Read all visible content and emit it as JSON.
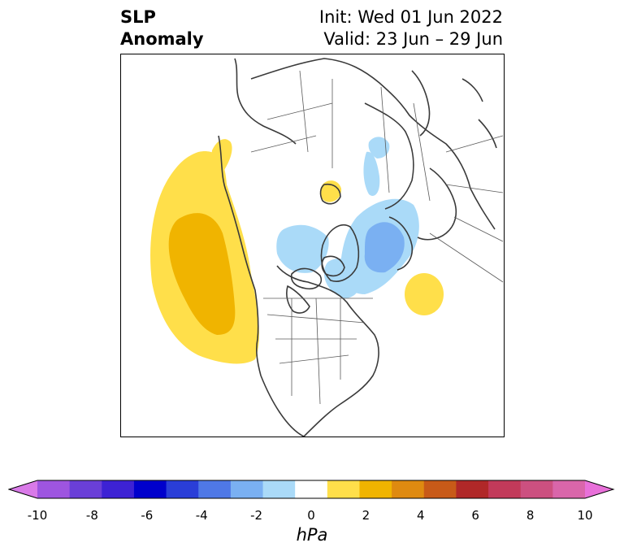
{
  "title": {
    "left_line1": "SLP",
    "left_line2": "Anomaly",
    "right_line1": "Init: Wed 01 Jun 2022",
    "right_line2": "Valid: 23 Jun – 29 Jun"
  },
  "colorbar": {
    "units": "hPa",
    "tick_labels": [
      "-10",
      "-8",
      "-6",
      "-4",
      "-2",
      "0",
      "2",
      "4",
      "6",
      "8",
      "10"
    ],
    "colors": [
      "#d97ae8",
      "#9e55e0",
      "#6a3fd8",
      "#3d22d4",
      "#0000cc",
      "#2a3ed8",
      "#4f78e6",
      "#7ab0f2",
      "#aadaf8",
      "#ffffff",
      "#ffdf4a",
      "#f0b400",
      "#df8a10",
      "#c85a18",
      "#b02828",
      "#c23a5a",
      "#cc5080",
      "#d966aa",
      "#e870d9"
    ],
    "range": [
      -10,
      10
    ],
    "extend": "both"
  },
  "map": {
    "projection": "north-polar stereographic",
    "field": "sea level pressure anomaly",
    "colors": {
      "pos_light": "#ffdf4a",
      "pos_dark": "#f0b400",
      "neg_light": "#aadaf8",
      "neg_dark": "#7ab0f2",
      "coast": "#3a3a3a"
    }
  }
}
